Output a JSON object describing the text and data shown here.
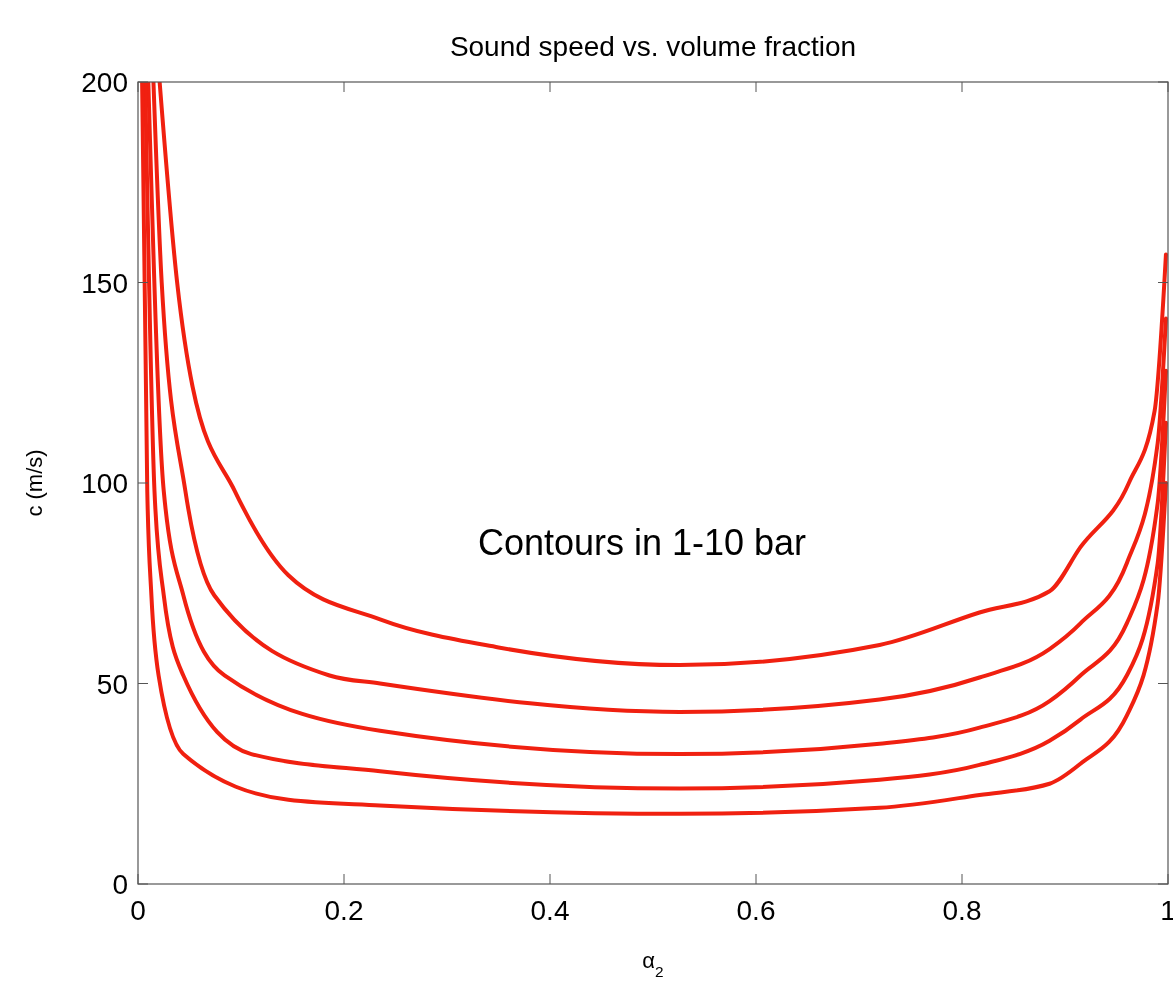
{
  "chart_data": {
    "type": "line",
    "title": "Sound speed vs. volume fraction",
    "xlabel": "α$_{2}$",
    "ylabel": "c (m/s)",
    "xlim": [
      0,
      1
    ],
    "xticks": [
      0,
      0.2,
      0.4,
      0.6,
      0.8,
      1
    ],
    "ylim": [
      0,
      200
    ],
    "yticks": [
      0,
      50,
      100,
      150,
      200
    ],
    "annotations": [
      "Contours in 1-10 bar"
    ],
    "series": [
      {
        "color": "#f02010",
        "x": [
          0.021,
          0.038,
          0.053,
          0.094,
          0.146,
          0.235,
          0.35,
          0.526,
          0.72,
          0.817,
          0.885,
          0.915,
          0.962,
          0.987,
          0.998
        ],
        "values": [
          200,
          150,
          124,
          98,
          77,
          66,
          59,
          54.6,
          59.6,
          67.7,
          73,
          84,
          100,
          118,
          157
        ]
      },
      {
        "color": "#f02010",
        "x": [
          0.015,
          0.023,
          0.046,
          0.074,
          0.186,
          0.235,
          0.526,
          0.72,
          0.817,
          0.885,
          0.915,
          0.96,
          0.99,
          0.998
        ],
        "values": [
          200,
          150,
          98,
          72,
          52,
          50,
          42.9,
          46,
          51.5,
          58.6,
          65,
          80,
          110,
          141
        ]
      },
      {
        "color": "#f02010",
        "x": [
          0.01,
          0.025,
          0.044,
          0.084,
          0.235,
          0.526,
          0.72,
          0.817,
          0.885,
          0.915,
          0.96,
          0.99,
          0.998
        ],
        "values": [
          200,
          98,
          72,
          52,
          38.2,
          32.4,
          35,
          39,
          45.6,
          52,
          65,
          95,
          128
        ]
      },
      {
        "color": "#f02010",
        "x": [
          0.007,
          0.016,
          0.025,
          0.044,
          0.11,
          0.235,
          0.526,
          0.72,
          0.817,
          0.885,
          0.915,
          0.96,
          0.99,
          0.998
        ],
        "values": [
          200,
          98,
          72,
          52,
          32.4,
          28.1,
          23.8,
          26,
          29.7,
          35.7,
          41,
          52,
          80,
          115
        ]
      },
      {
        "color": "#f02010",
        "x": [
          0.004,
          0.009,
          0.013,
          0.02,
          0.044,
          0.146,
          0.235,
          0.526,
          0.72,
          0.817,
          0.885,
          0.915,
          0.96,
          0.99,
          0.998
        ],
        "values": [
          200,
          98,
          72,
          52,
          32.4,
          21,
          19.6,
          17.5,
          19,
          22.2,
          25,
          30,
          42,
          70,
          100
        ]
      }
    ]
  }
}
